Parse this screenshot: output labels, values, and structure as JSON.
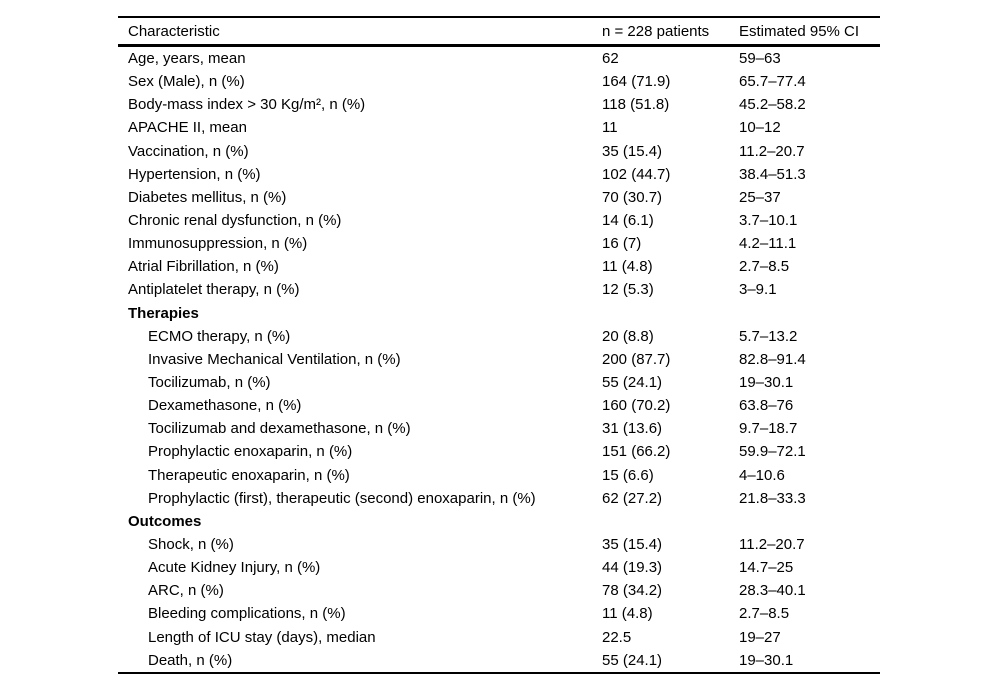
{
  "table": {
    "columns": [
      "Characteristic",
      "n = 228 patients",
      "Estimated 95% CI"
    ],
    "rows": [
      {
        "label": "Age, years, mean",
        "value": "62",
        "ci": "59–63"
      },
      {
        "label": "Sex (Male), n (%)",
        "value": "164 (71.9)",
        "ci": "65.7–77.4"
      },
      {
        "label": "Body-mass index > 30 Kg/m², n (%)",
        "value": "118 (51.8)",
        "ci": "45.2–58.2"
      },
      {
        "label": "APACHE II, mean",
        "value": "11",
        "ci": "10–12"
      },
      {
        "label": "Vaccination, n (%)",
        "value": "35 (15.4)",
        "ci": "11.2–20.7"
      },
      {
        "label": "Hypertension, n (%)",
        "value": "102 (44.7)",
        "ci": "38.4–51.3"
      },
      {
        "label": "Diabetes mellitus, n (%)",
        "value": "70 (30.7)",
        "ci": "25–37"
      },
      {
        "label": "Chronic renal dysfunction, n (%)",
        "value": "14 (6.1)",
        "ci": "3.7–10.1"
      },
      {
        "label": "Immunosuppression, n (%)",
        "value": "16 (7)",
        "ci": "4.2–11.1"
      },
      {
        "label": "Atrial Fibrillation, n (%)",
        "value": "11 (4.8)",
        "ci": "2.7–8.5"
      },
      {
        "label": "Antiplatelet therapy, n (%)",
        "value": "12 (5.3)",
        "ci": "3–9.1"
      },
      {
        "label": "Therapies",
        "section": true
      },
      {
        "label": "ECMO therapy, n (%)",
        "value": "20 (8.8)",
        "ci": "5.7–13.2",
        "indent": true
      },
      {
        "label": "Invasive Mechanical Ventilation, n (%)",
        "value": "200 (87.7)",
        "ci": "82.8–91.4",
        "indent": true
      },
      {
        "label": "Tocilizumab, n (%)",
        "value": "55 (24.1)",
        "ci": "19–30.1",
        "indent": true
      },
      {
        "label": "Dexamethasone, n (%)",
        "value": "160 (70.2)",
        "ci": "63.8–76",
        "indent": true
      },
      {
        "label": "Tocilizumab and dexamethasone, n (%)",
        "value": "31 (13.6)",
        "ci": "9.7–18.7",
        "indent": true
      },
      {
        "label": "Prophylactic enoxaparin, n (%)",
        "value": "151 (66.2)",
        "ci": "59.9–72.1",
        "indent": true
      },
      {
        "label": "Therapeutic enoxaparin, n (%)",
        "value": "15 (6.6)",
        "ci": "4–10.6",
        "indent": true
      },
      {
        "label": "Prophylactic (first), therapeutic (second) enoxaparin, n (%)",
        "value": "62 (27.2)",
        "ci": "21.8–33.3",
        "indent": true
      },
      {
        "label": "Outcomes",
        "section": true
      },
      {
        "label": "Shock, n (%)",
        "value": "35 (15.4)",
        "ci": "11.2–20.7",
        "indent": true
      },
      {
        "label": "Acute Kidney Injury, n (%)",
        "value": "44 (19.3)",
        "ci": "14.7–25",
        "indent": true
      },
      {
        "label": "ARC, n (%)",
        "value": "78 (34.2)",
        "ci": "28.3–40.1",
        "indent": true
      },
      {
        "label": "Bleeding complications, n (%)",
        "value": "11 (4.8)",
        "ci": "2.7–8.5",
        "indent": true
      },
      {
        "label": "Length of ICU stay (days), median",
        "value": "22.5",
        "ci": "19–27",
        "indent": true
      },
      {
        "label": "Death, n (%)",
        "value": "55 (24.1)",
        "ci": "19–30.1",
        "indent": true
      }
    ]
  }
}
